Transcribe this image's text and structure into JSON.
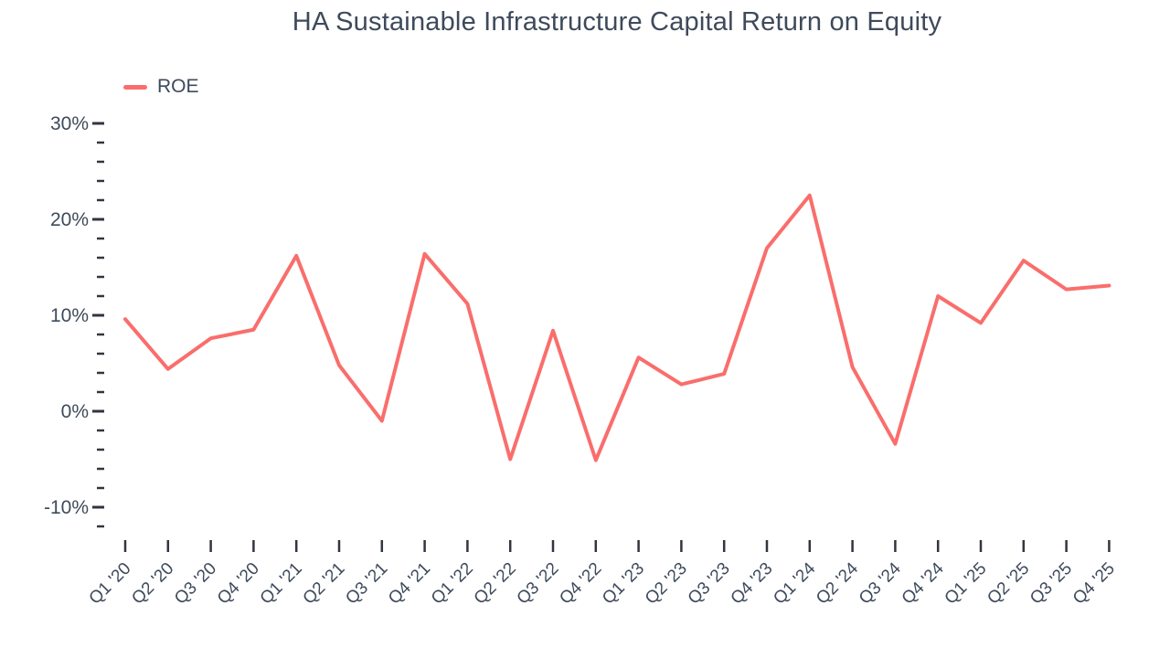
{
  "chart_data": {
    "type": "line",
    "title": "HA Sustainable Infrastructure Capital Return on Equity",
    "categories": [
      "Q1 '20",
      "Q2 '20",
      "Q3 '20",
      "Q4 '20",
      "Q1 '21",
      "Q2 '21",
      "Q3 '21",
      "Q4 '21",
      "Q1 '22",
      "Q2 '22",
      "Q3 '22",
      "Q4 '22",
      "Q1 '23",
      "Q2 '23",
      "Q3 '23",
      "Q4 '23",
      "Q1 '24",
      "Q2 '24",
      "Q3 '24",
      "Q4 '24",
      "Q1 '25",
      "Q2 '25",
      "Q3 '25",
      "Q4 '25"
    ],
    "series": [
      {
        "name": "ROE",
        "color": "#F96E6C",
        "values": [
          9.6,
          4.4,
          7.6,
          8.5,
          16.2,
          4.8,
          -1.0,
          16.4,
          11.2,
          -5.0,
          8.4,
          -5.1,
          5.6,
          2.8,
          3.9,
          17.0,
          22.5,
          4.6,
          -3.4,
          12.0,
          9.2,
          15.7,
          12.7,
          13.1
        ]
      }
    ],
    "xlabel": "",
    "ylabel": "",
    "yticks": [
      30,
      20,
      10,
      0,
      -10
    ],
    "ytick_suffix": "%",
    "minor_ytick_step": 2,
    "ylim": [
      -12,
      30
    ],
    "grid": false,
    "legend_position": "top-left",
    "x_label_rotation": -45
  },
  "colors": {
    "text": "#3E4A5B",
    "tick": "#30363F",
    "background": "#FFFFFF"
  }
}
